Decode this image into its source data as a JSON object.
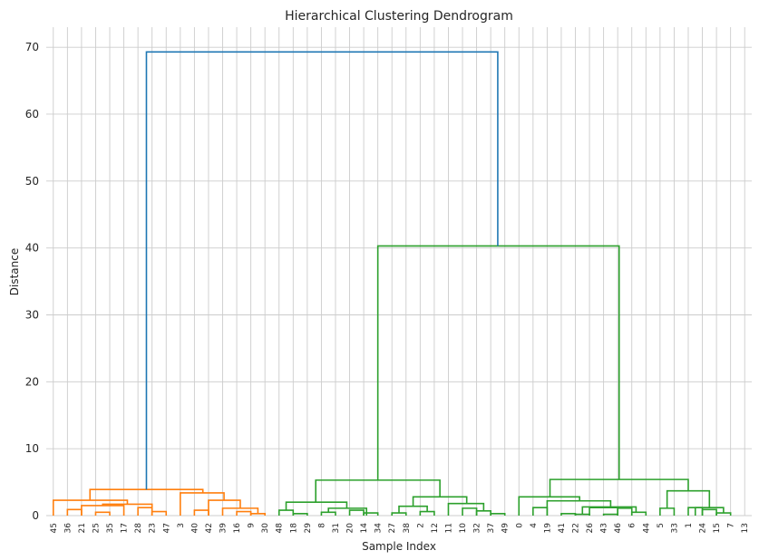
{
  "chart_data": {
    "type": "dendrogram",
    "title": "Hierarchical Clustering Dendrogram",
    "xlabel": "Sample Index",
    "ylabel": "Distance",
    "ylim": [
      0,
      73
    ],
    "yticks": [
      0,
      10,
      20,
      30,
      40,
      50,
      60,
      70
    ],
    "grid": true,
    "leaf_order": [
      "45",
      "36",
      "21",
      "25",
      "35",
      "17",
      "28",
      "23",
      "47",
      "3",
      "40",
      "42",
      "39",
      "16",
      "9",
      "30",
      "48",
      "18",
      "29",
      "8",
      "31",
      "20",
      "14",
      "34",
      "27",
      "38",
      "2",
      "12",
      "11",
      "10",
      "32",
      "37",
      "49",
      "0",
      "4",
      "19",
      "41",
      "22",
      "26",
      "43",
      "46",
      "6",
      "44",
      "5",
      "33",
      "1",
      "24",
      "15",
      "7",
      "13"
    ],
    "colors": {
      "root": "#1f77b4",
      "cluster_1": "#ff7f0e",
      "cluster_2": "#2ca02c"
    },
    "merges": [
      {
        "left": [
          1
        ],
        "right": [
          2
        ],
        "height": 0.9,
        "color": "#ff7f0e"
      },
      {
        "left": [
          3
        ],
        "right": [
          4
        ],
        "height": 0.5,
        "color": "#ff7f0e"
      },
      {
        "left": [
          6
        ],
        "right": [
          7
        ],
        "height": 1.2,
        "color": "#ff7f0e"
      },
      {
        "left": [
          7
        ],
        "right": [
          8
        ],
        "height": 0.6,
        "color": "#ff7f0e"
      },
      {
        "left": [
          10
        ],
        "right": [
          11
        ],
        "height": 0.8,
        "color": "#ff7f0e"
      },
      {
        "left": [
          13
        ],
        "right": [
          14
        ],
        "height": 0.6,
        "color": "#ff7f0e"
      },
      {
        "left": [
          14
        ],
        "right": [
          15
        ],
        "height": 0.3,
        "color": "#ff7f0e"
      },
      {
        "left": [
          12
        ],
        "right": [
          14.5
        ],
        "height": 1.1,
        "color": "#ff7f0e"
      },
      {
        "left": [
          11
        ],
        "right": [
          13.25
        ],
        "height": 2.3,
        "color": "#ff7f0e"
      },
      {
        "left": [
          9
        ],
        "right": [
          12.1
        ],
        "height": 3.4,
        "color": "#ff7f0e"
      },
      {
        "left": [
          2
        ],
        "right": [
          5
        ],
        "height": 1.5,
        "color": "#ff7f0e"
      },
      {
        "left": [
          3.5
        ],
        "right": [
          7
        ],
        "height": 1.7,
        "color": "#ff7f0e"
      },
      {
        "left": [
          0
        ],
        "right": [
          5.25
        ],
        "height": 2.3,
        "color": "#ff7f0e"
      },
      {
        "left": [
          2.6
        ],
        "right": [
          10.6
        ],
        "height": 3.9,
        "color": "#ff7f0e"
      },
      {
        "left": [
          16
        ],
        "right": [
          17
        ],
        "height": 0.8,
        "color": "#2ca02c"
      },
      {
        "left": [
          17
        ],
        "right": [
          18
        ],
        "height": 0.3,
        "color": "#2ca02c"
      },
      {
        "left": [
          19
        ],
        "right": [
          20
        ],
        "height": 0.5,
        "color": "#2ca02c"
      },
      {
        "left": [
          21
        ],
        "right": [
          22
        ],
        "height": 0.8,
        "color": "#2ca02c"
      },
      {
        "left": [
          22
        ],
        "right": [
          23
        ],
        "height": 0.4,
        "color": "#2ca02c"
      },
      {
        "left": [
          19.5
        ],
        "right": [
          22.2
        ],
        "height": 1.1,
        "color": "#2ca02c"
      },
      {
        "left": [
          16.5
        ],
        "right": [
          20.8
        ],
        "height": 2.0,
        "color": "#2ca02c"
      },
      {
        "left": [
          24
        ],
        "right": [
          25
        ],
        "height": 0.4,
        "color": "#2ca02c"
      },
      {
        "left": [
          26
        ],
        "right": [
          27
        ],
        "height": 0.6,
        "color": "#2ca02c"
      },
      {
        "left": [
          24.5
        ],
        "right": [
          26.5
        ],
        "height": 1.4,
        "color": "#2ca02c"
      },
      {
        "left": [
          29
        ],
        "right": [
          30
        ],
        "height": 1.1,
        "color": "#2ca02c"
      },
      {
        "left": [
          30
        ],
        "right": [
          31
        ],
        "height": 0.7,
        "color": "#2ca02c"
      },
      {
        "left": [
          31
        ],
        "right": [
          32
        ],
        "height": 0.3,
        "color": "#2ca02c"
      },
      {
        "left": [
          28
        ],
        "right": [
          30.5
        ],
        "height": 1.8,
        "color": "#2ca02c"
      },
      {
        "left": [
          25.5
        ],
        "right": [
          29.3
        ],
        "height": 2.8,
        "color": "#2ca02c"
      },
      {
        "left": [
          18.6
        ],
        "right": [
          27.4
        ],
        "height": 5.3,
        "color": "#2ca02c"
      },
      {
        "left": [
          34
        ],
        "right": [
          35
        ],
        "height": 1.2,
        "color": "#2ca02c"
      },
      {
        "left": [
          36
        ],
        "right": [
          37
        ],
        "height": 0.3,
        "color": "#2ca02c"
      },
      {
        "left": [
          37
        ],
        "right": [
          38
        ],
        "height": 0.2,
        "color": "#2ca02c"
      },
      {
        "left": [
          38
        ],
        "right": [
          40
        ],
        "height": 1.2,
        "color": "#2ca02c"
      },
      {
        "left": [
          39
        ],
        "right": [
          40
        ],
        "height": 0.2,
        "color": "#2ca02c"
      },
      {
        "left": [
          40
        ],
        "right": [
          41
        ],
        "height": 1.1,
        "color": "#2ca02c"
      },
      {
        "left": [
          41
        ],
        "right": [
          42
        ],
        "height": 0.5,
        "color": "#2ca02c"
      },
      {
        "left": [
          37.5
        ],
        "right": [
          41.3
        ],
        "height": 1.3,
        "color": "#2ca02c"
      },
      {
        "left": [
          35
        ],
        "right": [
          39.5
        ],
        "height": 2.2,
        "color": "#2ca02c"
      },
      {
        "left": [
          33
        ],
        "right": [
          37.3
        ],
        "height": 2.8,
        "color": "#2ca02c"
      },
      {
        "left": [
          43
        ],
        "right": [
          44
        ],
        "height": 1.1,
        "color": "#2ca02c"
      },
      {
        "left": [
          45
        ],
        "right": [
          46
        ],
        "height": 1.2,
        "color": "#2ca02c"
      },
      {
        "left": [
          46
        ],
        "right": [
          47
        ],
        "height": 0.9,
        "color": "#2ca02c"
      },
      {
        "left": [
          47
        ],
        "right": [
          48
        ],
        "height": 0.4,
        "color": "#2ca02c"
      },
      {
        "left": [
          45.5
        ],
        "right": [
          47.5
        ],
        "height": 1.2,
        "color": "#2ca02c"
      },
      {
        "left": [
          43.5
        ],
        "right": [
          46.5
        ],
        "height": 3.7,
        "color": "#2ca02c"
      },
      {
        "left": [
          35.2
        ],
        "right": [
          45
        ],
        "height": 5.4,
        "color": "#2ca02c"
      },
      {
        "left": [
          23
        ],
        "right": [
          40.1
        ],
        "height": 40.3,
        "color": "#2ca02c"
      },
      {
        "left": [
          6.6
        ],
        "right": [
          31.5
        ],
        "height": 69.3,
        "color": "#1f77b4"
      }
    ]
  }
}
